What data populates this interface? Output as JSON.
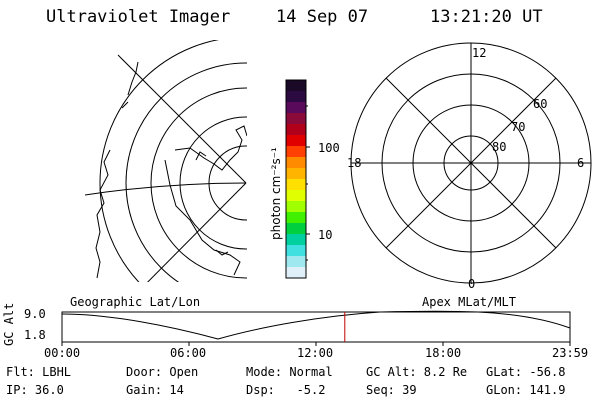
{
  "header": {
    "instrument": "Ultraviolet Imager",
    "date": "14 Sep 07",
    "time": "13:21:20 UT"
  },
  "colorbar": {
    "unit_label": "photon cm⁻²s⁻¹",
    "tick_labels": [
      "100",
      "10"
    ],
    "colors": [
      "#1a0a28",
      "#2a0a40",
      "#5a0a5a",
      "#8a0a3a",
      "#b0001a",
      "#e00000",
      "#ff4000",
      "#ff8c00",
      "#ffb400",
      "#ffe000",
      "#e0ff00",
      "#a0ff00",
      "#40f000",
      "#00d040",
      "#00d0a0",
      "#40e0e0",
      "#a0e8f0",
      "#e0f0f8"
    ]
  },
  "geographic_panel": {
    "label": "Geographic Lat/Lon"
  },
  "apex_panel": {
    "label": "Apex MLat/MLT",
    "mlt_labels": {
      "top": "12",
      "bottom": "0",
      "left": "18",
      "right": "6"
    },
    "lat_labels": [
      "60",
      "70",
      "80"
    ]
  },
  "timeline": {
    "ylabel": "GC Alt",
    "ytick_labels": [
      "9.0",
      "1.8"
    ],
    "xtick_labels": [
      "00:00",
      "06:00",
      "12:00",
      "18:00",
      "23:59"
    ],
    "current_time_marker": "13:21",
    "marker_color": "#c00000"
  },
  "status": {
    "filter": "Flt: LBHL",
    "ip": "IP: 36.0",
    "door": "Door: Open",
    "gain": "Gain: 14",
    "mode": "Mode: Normal",
    "dsp": "Dsp:   -5.2",
    "gc_alt": "GC Alt: 8.2 Re",
    "seq": "Seq: 39",
    "glat": "GLat: -56.8",
    "glon": "GLon: 141.9"
  }
}
